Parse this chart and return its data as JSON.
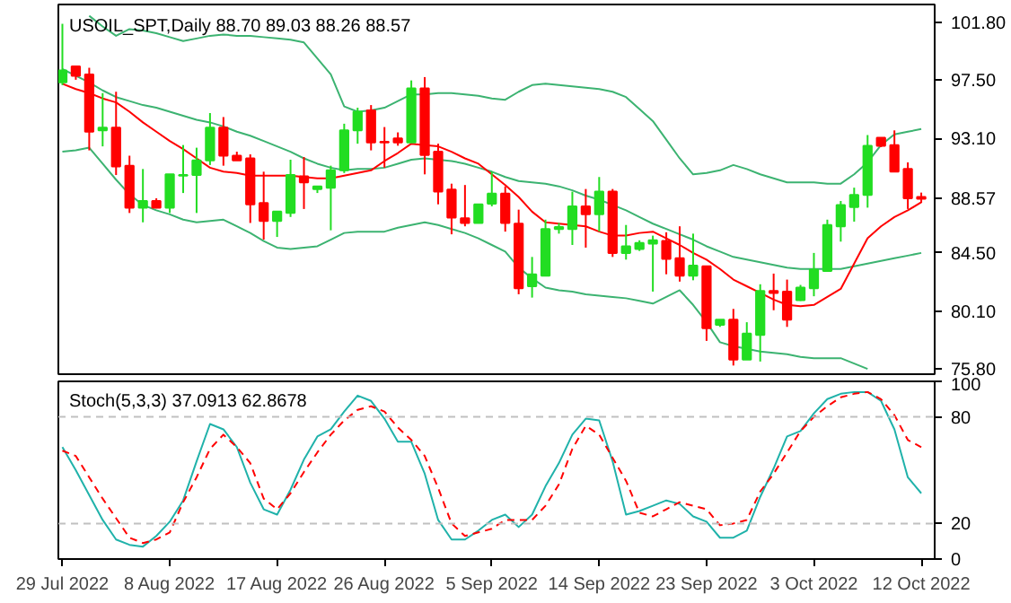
{
  "chart_data": [
    {
      "type": "candlestick",
      "title": "USOIL_SPT,Daily  88.70 89.03 88.26 88.57",
      "categories": [
        null,
        null,
        null,
        null,
        null,
        null,
        null,
        null,
        null,
        null,
        null,
        null,
        null,
        null,
        null,
        null,
        null,
        null,
        null,
        null,
        null,
        null,
        null,
        null,
        null,
        null,
        null,
        null,
        null,
        null,
        null,
        null,
        null,
        null,
        null,
        null,
        null,
        null,
        null,
        null,
        null,
        null,
        null,
        null,
        null,
        null,
        null,
        null,
        null,
        null,
        null,
        null,
        null,
        null,
        null,
        null,
        null,
        null,
        null,
        null,
        null,
        null,
        null,
        null,
        null
      ],
      "ohlc": [
        [
          97.3,
          101.7,
          97.1,
          98.2
        ],
        [
          98.5,
          98.5,
          97.5,
          97.8
        ],
        [
          97.9,
          98.4,
          92.2,
          93.6
        ],
        [
          93.7,
          96.5,
          92.5,
          93.9
        ],
        [
          93.9,
          96.6,
          90.35,
          91.0
        ],
        [
          91.05,
          91.8,
          87.5,
          87.9
        ],
        [
          87.9,
          90.8,
          86.8,
          88.4
        ],
        [
          88.4,
          88.6,
          87.85,
          87.9
        ],
        [
          87.9,
          90.4,
          87.5,
          90.4
        ],
        [
          90.3,
          92.6,
          89.0,
          90.35
        ],
        [
          90.35,
          92.4,
          87.5,
          91.45
        ],
        [
          91.45,
          95.0,
          91.1,
          93.9
        ],
        [
          93.9,
          94.7,
          91.05,
          91.8
        ],
        [
          91.8,
          92.1,
          91.45,
          91.45
        ],
        [
          91.6,
          91.9,
          86.75,
          88.15
        ],
        [
          88.25,
          90.6,
          85.5,
          86.9
        ],
        [
          86.9,
          87.6,
          85.7,
          87.6
        ],
        [
          87.5,
          91.5,
          87.2,
          90.35
        ],
        [
          90.25,
          91.7,
          87.8,
          89.8
        ],
        [
          89.3,
          89.5,
          89.0,
          89.5
        ],
        [
          89.4,
          91.05,
          86.2,
          90.7
        ],
        [
          90.7,
          94.2,
          90.5,
          93.7
        ],
        [
          93.7,
          95.4,
          92.7,
          95.1
        ],
        [
          95.2,
          95.6,
          92.2,
          92.8
        ],
        [
          92.85,
          93.95,
          90.9,
          92.8
        ],
        [
          93.1,
          93.55,
          92.55,
          92.8
        ],
        [
          92.8,
          97.45,
          92.8,
          96.85
        ],
        [
          96.85,
          97.7,
          90.4,
          91.85
        ],
        [
          92.1,
          92.7,
          88.15,
          89.1
        ],
        [
          89.25,
          89.7,
          85.9,
          87.15
        ],
        [
          87.1,
          89.6,
          86.5,
          86.75
        ],
        [
          86.75,
          88.15,
          86.75,
          88.15
        ],
        [
          88.2,
          90.6,
          88.0,
          88.95
        ],
        [
          88.95,
          89.5,
          86.1,
          86.75
        ],
        [
          86.7,
          87.75,
          81.4,
          81.85
        ],
        [
          82.0,
          84.2,
          81.15,
          82.9
        ],
        [
          82.8,
          87.0,
          82.8,
          86.3
        ],
        [
          86.3,
          86.75,
          85.95,
          86.45
        ],
        [
          86.3,
          89.1,
          85.1,
          88.0
        ],
        [
          88.0,
          89.3,
          84.9,
          87.4
        ],
        [
          87.4,
          90.2,
          86.1,
          89.1
        ],
        [
          89.1,
          89.3,
          84.2,
          84.5
        ],
        [
          84.5,
          86.6,
          84.0,
          85.0
        ],
        [
          84.8,
          85.45,
          84.65,
          85.25
        ],
        [
          85.2,
          85.8,
          81.6,
          85.45
        ],
        [
          85.4,
          86.05,
          82.9,
          84.05
        ],
        [
          84.1,
          86.5,
          82.35,
          82.8
        ],
        [
          82.8,
          85.95,
          82.45,
          83.55
        ],
        [
          83.5,
          83.5,
          77.9,
          78.85
        ],
        [
          79.1,
          79.5,
          78.95,
          79.5
        ],
        [
          79.5,
          80.3,
          76.05,
          76.5
        ],
        [
          76.5,
          79.3,
          76.5,
          78.45
        ],
        [
          78.35,
          82.15,
          76.35,
          81.65
        ],
        [
          81.65,
          82.95,
          80.2,
          81.5
        ],
        [
          81.6,
          82.5,
          78.95,
          79.5
        ],
        [
          80.95,
          82.1,
          80.9,
          81.9
        ],
        [
          81.85,
          84.5,
          81.25,
          83.25
        ],
        [
          83.15,
          87.0,
          83.15,
          86.6
        ],
        [
          86.5,
          88.4,
          85.35,
          88.1
        ],
        [
          87.95,
          89.4,
          86.85,
          88.85
        ],
        [
          88.85,
          93.35,
          87.9,
          92.55
        ],
        [
          93.15,
          93.15,
          92.45,
          92.55
        ],
        [
          92.6,
          93.7,
          90.6,
          90.6
        ],
        [
          90.8,
          91.3,
          87.8,
          88.6
        ],
        [
          88.7,
          89.03,
          88.26,
          88.57
        ]
      ],
      "colors": [
        "#22dd22",
        "#ff0000",
        "#ff0000",
        "#22dd22",
        "#ff0000",
        "#ff0000",
        "#22dd22",
        "#ff0000",
        "#22dd22",
        "#22dd22",
        "#22dd22",
        "#22dd22",
        "#ff0000",
        "#ff0000",
        "#ff0000",
        "#ff0000",
        "#22dd22",
        "#22dd22",
        "#ff0000",
        "#22dd22",
        "#22dd22",
        "#22dd22",
        "#22dd22",
        "#ff0000",
        "#ff0000",
        "#ff0000",
        "#22dd22",
        "#ff0000",
        "#ff0000",
        "#ff0000",
        "#ff0000",
        "#22dd22",
        "#22dd22",
        "#ff0000",
        "#ff0000",
        "#22dd22",
        "#22dd22",
        "#22dd22",
        "#22dd22",
        "#ff0000",
        "#22dd22",
        "#ff0000",
        "#22dd22",
        "#22dd22",
        "#22dd22",
        "#ff0000",
        "#ff0000",
        "#22dd22",
        "#ff0000",
        "#22dd22",
        "#ff0000",
        "#22dd22",
        "#22dd22",
        "#ff0000",
        "#ff0000",
        "#22dd22",
        "#22dd22",
        "#22dd22",
        "#22dd22",
        "#22dd22",
        "#22dd22",
        "#ff0000",
        "#ff0000",
        "#ff0000",
        "#ff0000"
      ],
      "series": [
        {
          "type": "line",
          "color": "#3cb371",
          "values": [
            null,
            null,
            102.3,
            101.5,
            100.8,
            101.3,
            101.2,
            101.0,
            100.7,
            100.4,
            100.6,
            100.8,
            100.9,
            100.8,
            100.8,
            100.7,
            100.6,
            100.5,
            100.3,
            99.1,
            97.9,
            95.5,
            95.1,
            95.2,
            95.4,
            95.9,
            96.4,
            96.4,
            96.5,
            96.5,
            96.4,
            96.3,
            96.1,
            96.0,
            96.6,
            97.1,
            97.2,
            97.1,
            97.0,
            96.9,
            96.8,
            96.6,
            96.2,
            95.3,
            94.4,
            93.0,
            91.6,
            90.4,
            90.5,
            90.7,
            91.1,
            90.8,
            90.4,
            90.1,
            89.8,
            89.8,
            89.8,
            89.7,
            89.7,
            90.4,
            91.3,
            92.6,
            93.4,
            93.6,
            93.8
          ]
        },
        {
          "type": "line",
          "color": "#3cb371",
          "values": [
            98.3,
            97.8,
            97.3,
            96.7,
            96.2,
            95.9,
            95.6,
            95.4,
            95.1,
            94.8,
            94.5,
            94.3,
            94.0,
            93.6,
            93.3,
            92.9,
            92.5,
            92.1,
            91.6,
            91.2,
            90.9,
            90.7,
            90.8,
            90.8,
            90.9,
            91.2,
            91.5,
            91.6,
            91.5,
            91.4,
            91.2,
            90.9,
            90.6,
            90.2,
            89.9,
            89.8,
            89.7,
            89.5,
            89.2,
            88.8,
            88.5,
            88.1,
            87.7,
            87.2,
            86.7,
            86.3,
            85.9,
            85.5,
            85.0,
            84.6,
            84.2,
            84.0,
            83.8,
            83.6,
            83.4,
            83.3,
            83.3,
            83.3,
            83.3,
            83.5,
            83.7,
            83.9,
            84.1,
            84.3,
            84.5
          ]
        },
        {
          "type": "line",
          "color": "#3cb371",
          "values": [
            92.1,
            92.2,
            92.4,
            91.2,
            90.0,
            88.9,
            88.1,
            87.7,
            87.4,
            87.0,
            86.8,
            86.9,
            87.0,
            86.5,
            86.0,
            85.4,
            84.9,
            84.8,
            84.9,
            85.0,
            85.5,
            86.0,
            86.1,
            86.1,
            86.1,
            86.4,
            86.6,
            86.8,
            86.6,
            86.3,
            86.0,
            85.6,
            85.1,
            84.6,
            83.4,
            82.6,
            81.9,
            81.7,
            81.6,
            81.4,
            81.3,
            81.2,
            81.1,
            80.9,
            80.7,
            81.2,
            81.7,
            80.6,
            79.3,
            77.8,
            77.5,
            77.3,
            77.1,
            77.0,
            76.9,
            76.7,
            76.6,
            76.6,
            76.6,
            76.2,
            75.8,
            null,
            null,
            null,
            null
          ]
        },
        {
          "type": "line",
          "color": "#ff0000",
          "values": [
            97.2,
            96.8,
            96.5,
            96.1,
            95.8,
            95.1,
            94.3,
            93.6,
            92.9,
            92.3,
            91.6,
            90.9,
            90.6,
            90.5,
            90.3,
            90.3,
            90.3,
            90.3,
            90.2,
            90.1,
            90.1,
            90.3,
            90.5,
            90.7,
            91.4,
            92.0,
            92.7,
            92.6,
            92.5,
            92.1,
            91.6,
            91.2,
            90.4,
            89.6,
            88.7,
            87.6,
            86.8,
            86.7,
            86.6,
            86.5,
            86.1,
            85.8,
            85.8,
            86.0,
            86.1,
            85.6,
            85.1,
            84.5,
            84.0,
            83.3,
            82.5,
            82.0,
            81.5,
            81.0,
            80.6,
            80.5,
            80.6,
            81.2,
            81.8,
            83.7,
            85.6,
            86.5,
            87.2,
            87.7,
            88.3
          ]
        }
      ],
      "ylim": [
        75.4,
        103.15
      ],
      "yticks": [
        {
          "value": 101.8,
          "label": "101.80"
        },
        {
          "value": 97.5,
          "label": "97.50"
        },
        {
          "value": 93.1,
          "label": "93.10"
        },
        {
          "value": 88.57,
          "label": "88.57"
        },
        {
          "value": 84.5,
          "label": "84.50"
        },
        {
          "value": 80.1,
          "label": "80.10"
        },
        {
          "value": 75.8,
          "label": "75.80"
        }
      ],
      "tick_labels": "y",
      "grid": false
    },
    {
      "type": "line",
      "title": "Stoch(5,3,3) 37.0913 62.8678",
      "series": [
        {
          "color": "#20b2aa",
          "line_style": "solid",
          "values": [
            63,
            50,
            36,
            22,
            11,
            8,
            7,
            13,
            21,
            33,
            55,
            76,
            73,
            63,
            43,
            28,
            25,
            39,
            56,
            69,
            73,
            83,
            92,
            89,
            79,
            66,
            66,
            48,
            22,
            11,
            11,
            16,
            22,
            25,
            18,
            25,
            41,
            54,
            70,
            79,
            78,
            55,
            25,
            27,
            30,
            33,
            31,
            24,
            21,
            12,
            12,
            16,
            35,
            51,
            69,
            72,
            82,
            90,
            93,
            94,
            94,
            89,
            73,
            46,
            37
          ]
        },
        {
          "color": "#ff0000",
          "line_style": "dashed",
          "values": [
            61,
            58,
            46,
            34,
            23,
            12,
            9,
            11,
            15,
            32,
            46,
            62,
            70,
            63,
            54,
            34,
            28,
            37,
            49,
            60,
            70,
            78,
            84,
            86,
            83,
            74,
            67,
            58,
            40,
            20,
            13,
            15,
            17,
            22,
            22,
            22,
            30,
            42,
            62,
            75,
            70,
            57,
            44,
            26,
            24,
            28,
            32,
            30,
            28,
            19,
            20,
            22,
            38,
            48,
            60,
            72,
            80,
            86,
            91,
            93,
            94,
            90,
            81,
            67,
            63
          ]
        }
      ],
      "categories": [
        "29 Jul 2022",
        null,
        null,
        null,
        null,
        null,
        null,
        null,
        "8 Aug 2022",
        null,
        null,
        null,
        null,
        null,
        null,
        null,
        "17 Aug 2022",
        null,
        null,
        null,
        null,
        null,
        null,
        null,
        "26 Aug 2022",
        null,
        null,
        null,
        null,
        null,
        null,
        null,
        "5 Sep 2022",
        null,
        null,
        null,
        null,
        null,
        null,
        null,
        "14 Sep 2022",
        null,
        null,
        null,
        null,
        null,
        null,
        null,
        "23 Sep 2022",
        null,
        null,
        null,
        null,
        null,
        null,
        null,
        "3 Oct 2022",
        null,
        null,
        null,
        null,
        null,
        null,
        null,
        "12 Oct 2022"
      ],
      "ylim": [
        0,
        100
      ],
      "yticks": [
        0,
        20,
        80,
        100
      ],
      "ref_lines": [
        {
          "axis": "y",
          "value": 80,
          "color": "#c0c0c0",
          "line_style": "dashed"
        },
        {
          "axis": "y",
          "value": 20,
          "color": "#c0c0c0",
          "line_style": "dashed"
        }
      ],
      "grid": false
    }
  ]
}
